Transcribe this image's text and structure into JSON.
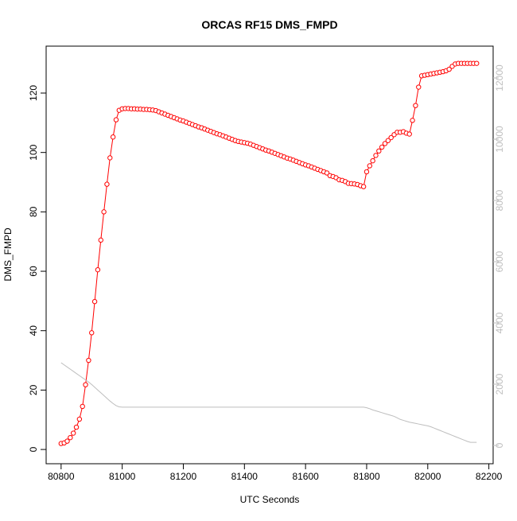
{
  "chart_data": {
    "type": "line",
    "title": "ORCAS RF15 DMS_FMPD",
    "xlabel": "UTC Seconds",
    "ylabel": "DMS_FMPD",
    "x": [
      80800,
      80810,
      80820,
      80830,
      80840,
      80850,
      80860,
      80870,
      80880,
      80890,
      80900,
      80910,
      80920,
      80930,
      80940,
      80950,
      80960,
      80970,
      80980,
      80990,
      81000,
      81010,
      81020,
      81030,
      81040,
      81050,
      81060,
      81070,
      81080,
      81090,
      81100,
      81110,
      81120,
      81130,
      81140,
      81150,
      81160,
      81170,
      81180,
      81190,
      81200,
      81210,
      81220,
      81230,
      81240,
      81250,
      81260,
      81270,
      81280,
      81290,
      81300,
      81310,
      81320,
      81330,
      81340,
      81350,
      81360,
      81370,
      81380,
      81390,
      81400,
      81410,
      81420,
      81430,
      81440,
      81450,
      81460,
      81470,
      81480,
      81490,
      81500,
      81510,
      81520,
      81530,
      81540,
      81550,
      81560,
      81570,
      81580,
      81590,
      81600,
      81610,
      81620,
      81630,
      81640,
      81650,
      81660,
      81670,
      81680,
      81690,
      81700,
      81710,
      81720,
      81730,
      81740,
      81750,
      81760,
      81770,
      81780,
      81790,
      81800,
      81810,
      81820,
      81830,
      81840,
      81850,
      81860,
      81870,
      81880,
      81890,
      81900,
      81910,
      81920,
      81930,
      81940,
      81950,
      81960,
      81970,
      81980,
      81990,
      82000,
      82010,
      82020,
      82030,
      82040,
      82050,
      82060,
      82070,
      82080,
      82090,
      82100,
      82110,
      82120,
      82130,
      82140,
      82150,
      82160
    ],
    "series": [
      {
        "color": "#ff0000",
        "marker": "circle",
        "values": [
          2,
          2.2,
          2.8,
          4,
          5.5,
          7.5,
          10.2,
          14.5,
          21.8,
          30,
          39.3,
          49.8,
          60.5,
          70.5,
          80,
          89.3,
          98.2,
          105.2,
          111,
          114.2,
          114.7,
          114.8,
          114.8,
          114.7,
          114.7,
          114.6,
          114.6,
          114.5,
          114.5,
          114.4,
          114.3,
          114.1,
          113.7,
          113.3,
          112.9,
          112.5,
          112.1,
          111.7,
          111.3,
          110.9,
          110.6,
          110.2,
          109.8,
          109.4,
          109.0,
          108.6,
          108.3,
          107.9,
          107.5,
          107.1,
          106.7,
          106.3,
          106.0,
          105.6,
          105.2,
          104.8,
          104.4,
          104.0,
          103.7,
          103.5,
          103.3,
          103.1,
          102.8,
          102.4,
          102.0,
          101.6,
          101.2,
          100.8,
          100.5,
          100.1,
          99.7,
          99.3,
          98.9,
          98.5,
          98.1,
          97.8,
          97.4,
          97.0,
          96.6,
          96.2,
          95.8,
          95.5,
          95.1,
          94.7,
          94.3,
          93.9,
          93.5,
          93.1,
          92.2,
          91.9,
          91.5,
          90.8,
          90.6,
          90.2,
          89.6,
          89.5,
          89.4,
          89.2,
          88.8,
          88.5,
          93.5,
          95.5,
          97.2,
          99,
          100.5,
          101.8,
          103,
          104,
          105,
          106,
          106.8,
          106.8,
          107,
          106.5,
          106.2,
          110.8,
          115.8,
          122,
          125.8,
          126,
          126.2,
          126.4,
          126.6,
          126.8,
          127,
          127.2,
          127.5,
          128,
          129,
          129.8,
          130,
          130,
          130,
          130,
          130,
          130,
          130
        ]
      },
      {
        "color": "#bebebe",
        "axis": "y2",
        "values": [
          2700,
          2630,
          2560,
          2490,
          2420,
          2350,
          2280,
          2210,
          2140,
          2070,
          1990,
          1900,
          1810,
          1720,
          1630,
          1540,
          1450,
          1370,
          1300,
          1260,
          1250,
          1250,
          1250,
          1250,
          1250,
          1250,
          1250,
          1250,
          1250,
          1250,
          1250,
          1250,
          1250,
          1250,
          1250,
          1250,
          1250,
          1250,
          1250,
          1250,
          1250,
          1250,
          1250,
          1250,
          1250,
          1250,
          1250,
          1250,
          1250,
          1250,
          1250,
          1250,
          1250,
          1250,
          1250,
          1250,
          1250,
          1250,
          1250,
          1250,
          1250,
          1250,
          1250,
          1250,
          1250,
          1250,
          1250,
          1250,
          1250,
          1250,
          1250,
          1250,
          1250,
          1250,
          1250,
          1250,
          1250,
          1250,
          1250,
          1250,
          1250,
          1250,
          1250,
          1250,
          1250,
          1250,
          1250,
          1250,
          1250,
          1250,
          1250,
          1250,
          1250,
          1250,
          1250,
          1250,
          1250,
          1250,
          1250,
          1250,
          1230,
          1200,
          1160,
          1130,
          1100,
          1070,
          1040,
          1010,
          980,
          950,
          900,
          850,
          820,
          790,
          760,
          740,
          720,
          700,
          680,
          660,
          640,
          610,
          570,
          530,
          490,
          450,
          410,
          370,
          330,
          290,
          250,
          210,
          170,
          130,
          100,
          100,
          100
        ]
      }
    ],
    "xlim": [
      80751,
      82214
    ],
    "xticks": [
      80800,
      81000,
      81200,
      81400,
      81600,
      81800,
      82000,
      82200
    ],
    "ylim": [
      -4.8,
      135.8
    ],
    "yticks": [
      0,
      20,
      40,
      60,
      80,
      100,
      120
    ],
    "y2lim": [
      -597,
      13039
    ],
    "y2ticks": [
      0,
      2000,
      4000,
      6000,
      8000,
      10000,
      12000
    ],
    "y2tick_color": "#bebebe"
  }
}
